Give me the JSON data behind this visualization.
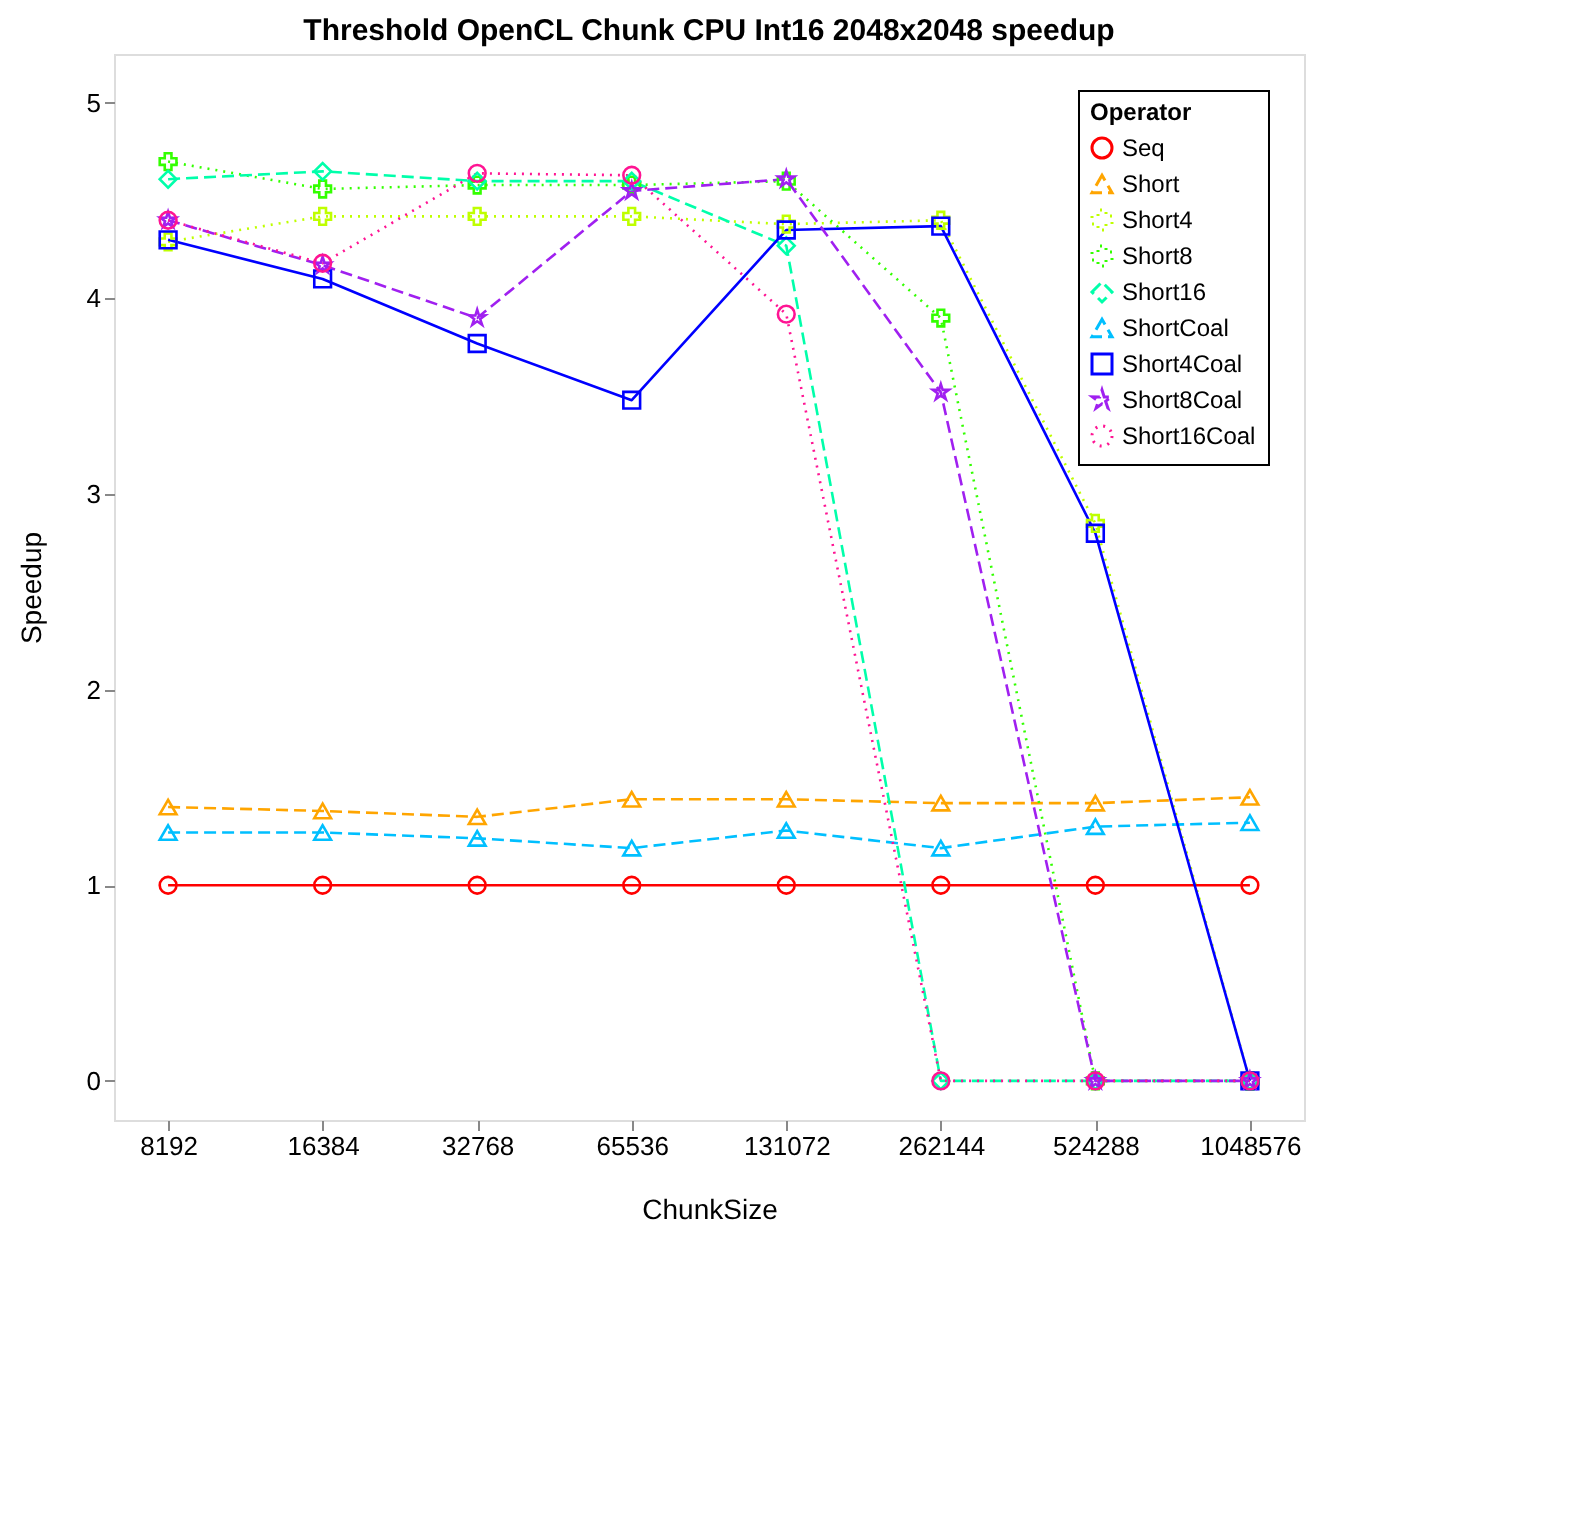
{
  "chart_data": {
    "type": "line",
    "title": "Threshold OpenCL Chunk CPU Int16 2048x2048 speedup",
    "xlabel": "ChunkSize",
    "ylabel": "Speedup",
    "legend_title": "Operator",
    "categories": [
      "8192",
      "16384",
      "32768",
      "65536",
      "131072",
      "262144",
      "524288",
      "1048576"
    ],
    "series": [
      {
        "name": "Seq",
        "color": "#ff0000",
        "marker": "circle",
        "line_style": "solid",
        "values": [
          1,
          1,
          1,
          1,
          1,
          1,
          1,
          1
        ]
      },
      {
        "name": "Short",
        "color": "#ffa500",
        "marker": "triangle",
        "line_style": "dashed",
        "values": [
          1.4,
          1.38,
          1.35,
          1.44,
          1.44,
          1.42,
          1.42,
          1.45
        ]
      },
      {
        "name": "Short4",
        "color": "#bfff00",
        "marker": "cross",
        "line_style": "dotted",
        "values": [
          4.29,
          4.42,
          4.42,
          4.42,
          4.38,
          4.4,
          2.85,
          0
        ]
      },
      {
        "name": "Short8",
        "color": "#33ff00",
        "marker": "cross",
        "line_style": "dotted",
        "values": [
          4.7,
          4.56,
          4.58,
          4.58,
          4.6,
          3.9,
          0,
          0
        ]
      },
      {
        "name": "Short16",
        "color": "#00ffaa",
        "marker": "diamond",
        "line_style": "dashed",
        "values": [
          4.61,
          4.65,
          4.6,
          4.6,
          4.27,
          0,
          0,
          0
        ]
      },
      {
        "name": "ShortCoal",
        "color": "#00bfff",
        "marker": "triangle",
        "line_style": "dashed",
        "values": [
          1.27,
          1.27,
          1.24,
          1.19,
          1.28,
          1.19,
          1.3,
          1.32
        ]
      },
      {
        "name": "Short4Coal",
        "color": "#0000ff",
        "marker": "square",
        "line_style": "solid",
        "values": [
          4.3,
          4.1,
          3.77,
          3.48,
          4.35,
          4.37,
          2.8,
          0
        ]
      },
      {
        "name": "Short8Coal",
        "color": "#a020f0",
        "marker": "star",
        "line_style": "dashed",
        "values": [
          4.4,
          4.17,
          3.9,
          4.55,
          4.61,
          3.52,
          0,
          0
        ]
      },
      {
        "name": "Short16Coal",
        "color": "#ff1493",
        "marker": "circle",
        "line_style": "dotted",
        "values": [
          4.4,
          4.18,
          4.64,
          4.63,
          3.92,
          0,
          0,
          0
        ]
      }
    ],
    "ylim": [
      -0.2,
      5.25
    ],
    "yticks": [
      0,
      1,
      2,
      3,
      4,
      5
    ],
    "grid": false,
    "legend": "top right"
  }
}
